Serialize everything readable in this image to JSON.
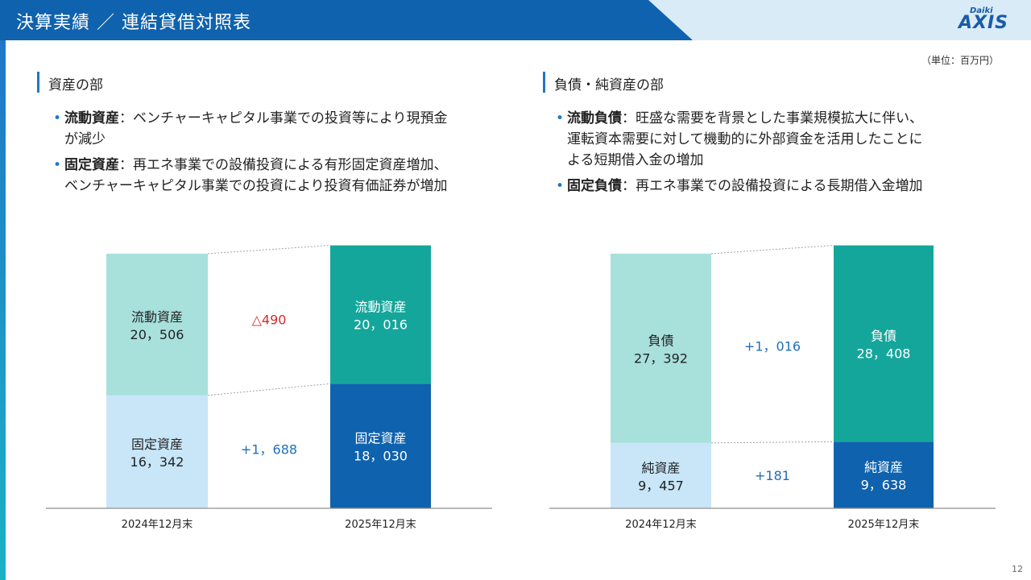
{
  "header": {
    "title": "決算実績 ／ 連結貸借対照表"
  },
  "logo": {
    "small": "Daiki",
    "main": "AXIS"
  },
  "unit": "（単位：百万円）",
  "assets": {
    "title": "資産の部",
    "bullets": [
      {
        "key": "流動資産",
        "sep": "：",
        "line1": "ベンチャーキャピタル事業での投資等により現預金",
        "line2": "が減少"
      },
      {
        "key": "固定資産",
        "sep": "：",
        "line1": "再エネ事業での設備投資による有形固定資産増加、",
        "line2": "ベンチャーキャピタル事業での投資により投資有価証券が増加"
      }
    ]
  },
  "liabilities": {
    "title": "負債・純資産の部",
    "bullets": [
      {
        "key": "流動負債",
        "sep": "：",
        "line1": "旺盛な需要を背景とした事業規模拡大に伴い、",
        "line2": "運転資本需要に対して機動的に外部資金を活用したことに",
        "line3": "よる短期借入金の増加"
      },
      {
        "key": "固定負債",
        "sep": "：",
        "line1": "再エネ事業での設備投資による長期借入金増加"
      }
    ]
  },
  "chart_data": [
    {
      "type": "bar",
      "stacked": true,
      "title": "資産の部",
      "categories": [
        "2024年12月末",
        "2025年12月末"
      ],
      "series": [
        {
          "name": "固定資産",
          "values": [
            16342,
            18030
          ],
          "labels": [
            "16，342",
            "18，030"
          ],
          "colors": [
            "#c8e6f8",
            "#0f62ad"
          ],
          "text_colors": [
            "#222222",
            "#ffffff"
          ]
        },
        {
          "name": "流動資産",
          "values": [
            20506,
            20016
          ],
          "labels": [
            "20，506",
            "20，016"
          ],
          "colors": [
            "#a8e0dc",
            "#15a69b"
          ],
          "text_colors": [
            "#222222",
            "#ffffff"
          ]
        }
      ],
      "changes": [
        {
          "series": "流動資産",
          "text": "△490",
          "color": "#d62a2a"
        },
        {
          "series": "固定資産",
          "text": "+1，688",
          "color": "#1f6fb8"
        }
      ],
      "ylim": [
        0,
        38000
      ]
    },
    {
      "type": "bar",
      "stacked": true,
      "title": "負債・純資産の部",
      "categories": [
        "2024年12月末",
        "2025年12月末"
      ],
      "series": [
        {
          "name": "純資産",
          "values": [
            9457,
            9638
          ],
          "labels": [
            "9，457",
            "9，638"
          ],
          "colors": [
            "#c8e6f8",
            "#0f62ad"
          ],
          "text_colors": [
            "#222222",
            "#ffffff"
          ]
        },
        {
          "name": "負債",
          "values": [
            27392,
            28408
          ],
          "labels": [
            "27，392",
            "28，408"
          ],
          "colors": [
            "#a8e0dc",
            "#15a69b"
          ],
          "text_colors": [
            "#222222",
            "#ffffff"
          ]
        }
      ],
      "changes": [
        {
          "series": "負債",
          "text": "+1，016",
          "color": "#1f6fb8"
        },
        {
          "series": "純資産",
          "text": "+181",
          "color": "#1f6fb8"
        }
      ],
      "ylim": [
        0,
        38000
      ]
    }
  ],
  "page_number": "12"
}
